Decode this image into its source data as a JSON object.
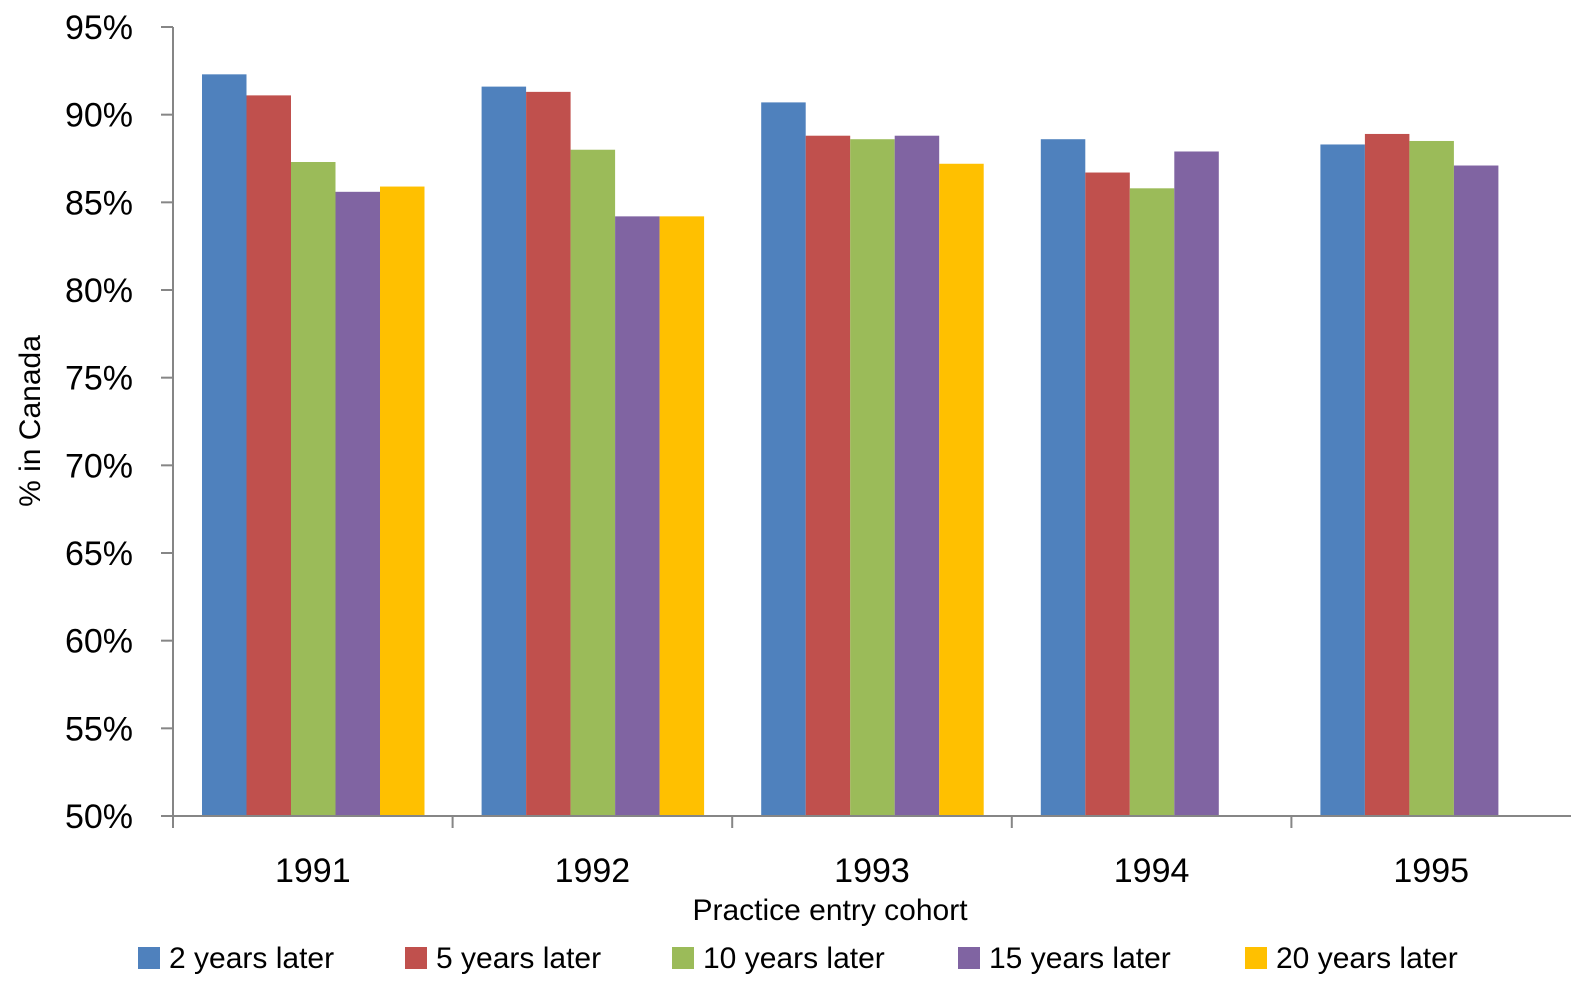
{
  "chart_data": {
    "type": "bar",
    "title": "",
    "xlabel": "Practice entry cohort",
    "ylabel": "% in Canada",
    "ylim": [
      50,
      95
    ],
    "y_tick_labels": [
      "50%",
      "55%",
      "60%",
      "65%",
      "70%",
      "75%",
      "80%",
      "85%",
      "90%",
      "95%"
    ],
    "y_ticks": [
      50,
      55,
      60,
      65,
      70,
      75,
      80,
      85,
      90,
      95
    ],
    "categories": [
      "1991",
      "1992",
      "1993",
      "1994",
      "1995"
    ],
    "grid": false,
    "legend_position": "bottom",
    "series": [
      {
        "name": "2 years later",
        "color": "#4F81BD",
        "values": [
          92.3,
          91.6,
          90.7,
          88.6,
          88.3
        ]
      },
      {
        "name": "5 years later",
        "color": "#C0504D",
        "values": [
          91.1,
          91.3,
          88.8,
          86.7,
          88.9
        ]
      },
      {
        "name": "10 years later",
        "color": "#9BBB59",
        "values": [
          87.3,
          88.0,
          88.6,
          85.8,
          88.5
        ]
      },
      {
        "name": "15 years later",
        "color": "#8064A2",
        "values": [
          85.6,
          84.2,
          88.8,
          87.9,
          87.1
        ]
      },
      {
        "name": "20 years later",
        "color": "#FFC000",
        "values": [
          85.9,
          84.2,
          87.2,
          null,
          null
        ]
      }
    ]
  }
}
